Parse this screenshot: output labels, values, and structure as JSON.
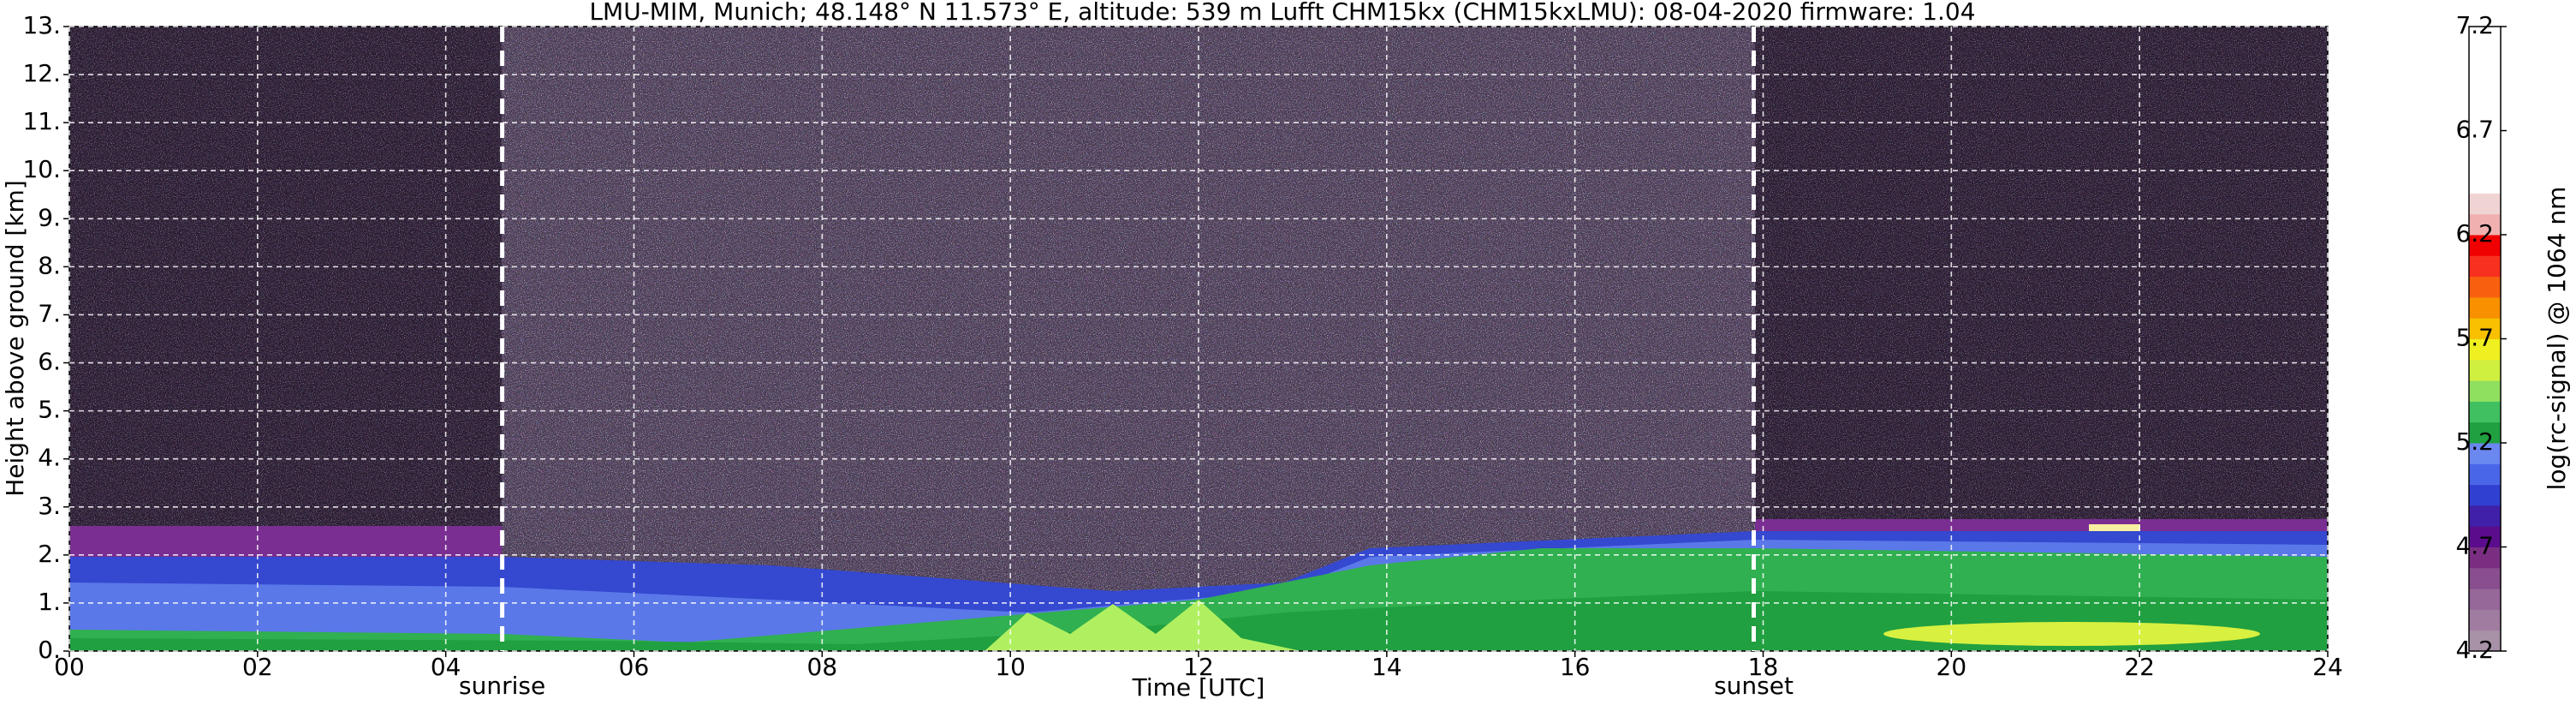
{
  "chart_data": {
    "type": "heatmap",
    "title": "LMU-MIM, Munich; 48.148° N 11.573° E, altitude: 539 m    Lufft CHM15kx (CHM15kxLMU): 08-04-2020    firmware: 1.04",
    "xlabel": "Time [UTC]",
    "ylabel": "Height above ground [km]",
    "colorbar_label": "log(rc-signal) @ 1064 nm",
    "xlim": [
      0,
      24
    ],
    "xticks": [
      {
        "value": 0,
        "label": "00"
      },
      {
        "value": 2,
        "label": "02"
      },
      {
        "value": 4,
        "label": "04"
      },
      {
        "value": 6,
        "label": "06"
      },
      {
        "value": 8,
        "label": "08"
      },
      10,
      12,
      14,
      16,
      18,
      20,
      22,
      24
    ],
    "ylim": [
      0,
      13
    ],
    "yticks": [
      {
        "value": 0,
        "label": "0."
      },
      {
        "value": 1,
        "label": "1."
      },
      {
        "value": 2,
        "label": "2."
      },
      {
        "value": 3,
        "label": "3."
      },
      {
        "value": 4,
        "label": "4."
      },
      {
        "value": 5,
        "label": "5."
      },
      {
        "value": 6,
        "label": "6."
      },
      {
        "value": 7,
        "label": "7."
      },
      {
        "value": 8,
        "label": "8."
      },
      {
        "value": 9,
        "label": "9."
      },
      {
        "value": 10,
        "label": "10."
      },
      {
        "value": 11,
        "label": "11."
      },
      {
        "value": 12,
        "label": "12."
      },
      {
        "value": 13,
        "label": "13."
      }
    ],
    "clim": [
      4.2,
      7.2
    ],
    "cticks": [
      4.2,
      4.7,
      5.2,
      5.7,
      6.2,
      6.7,
      7.2
    ],
    "colorscale": [
      "#a892a8",
      "#a07ca0",
      "#96689a",
      "#884e8e",
      "#7a2e82",
      "#5a0c8c",
      "#4020a8",
      "#3040d0",
      "#4a66e8",
      "#6a88f0",
      "#20a040",
      "#40c060",
      "#90e060",
      "#d0f040",
      "#f0f020",
      "#f8c000",
      "#f89000",
      "#f86010",
      "#f83020",
      "#f00000",
      "#f0b0b0",
      "#f0d4d4",
      "#ffffff",
      "#ffffff",
      "#ffffff",
      "#ffffff",
      "#ffffff",
      "#ffffff",
      "#ffffff",
      "#ffffff"
    ],
    "grid": true,
    "annotations": [
      {
        "text": "sunrise",
        "x": 4.6
      },
      {
        "text": "sunset",
        "x": 17.9
      }
    ]
  }
}
